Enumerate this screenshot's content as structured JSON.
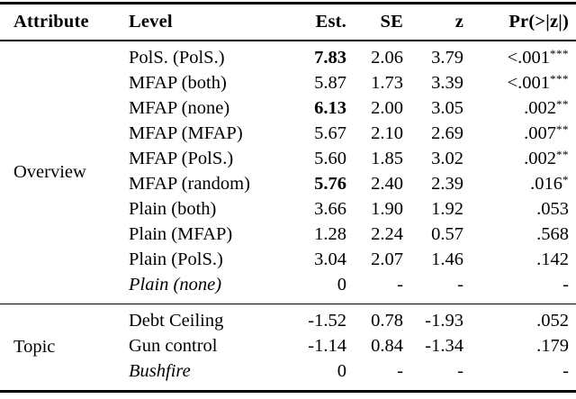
{
  "colors": {
    "text": "#000000",
    "background": "#ffffff",
    "rule": "#000000"
  },
  "table": {
    "columns": [
      "Attribute",
      "Level",
      "Est.",
      "SE",
      "z",
      "Pr(>|z|)"
    ],
    "groups": [
      {
        "attribute": "Overview",
        "rows": [
          {
            "level": "PolS. (PolS.)",
            "level_italic": false,
            "est": "7.83",
            "est_bold": true,
            "se": "2.06",
            "z": "3.79",
            "p": "<.001",
            "stars": "***"
          },
          {
            "level": "MFAP (both)",
            "level_italic": false,
            "est": "5.87",
            "est_bold": false,
            "se": "1.73",
            "z": "3.39",
            "p": "<.001",
            "stars": "***"
          },
          {
            "level": "MFAP (none)",
            "level_italic": false,
            "est": "6.13",
            "est_bold": true,
            "se": "2.00",
            "z": "3.05",
            "p": ".002",
            "stars": "**"
          },
          {
            "level": "MFAP (MFAP)",
            "level_italic": false,
            "est": "5.67",
            "est_bold": false,
            "se": "2.10",
            "z": "2.69",
            "p": ".007",
            "stars": "**"
          },
          {
            "level": "MFAP (PolS.)",
            "level_italic": false,
            "est": "5.60",
            "est_bold": false,
            "se": "1.85",
            "z": "3.02",
            "p": ".002",
            "stars": "**"
          },
          {
            "level": "MFAP (random)",
            "level_italic": false,
            "est": "5.76",
            "est_bold": true,
            "se": "2.40",
            "z": "2.39",
            "p": ".016",
            "stars": "*"
          },
          {
            "level": "Plain (both)",
            "level_italic": false,
            "est": "3.66",
            "est_bold": false,
            "se": "1.90",
            "z": "1.92",
            "p": ".053",
            "stars": ""
          },
          {
            "level": "Plain (MFAP)",
            "level_italic": false,
            "est": "1.28",
            "est_bold": false,
            "se": "2.24",
            "z": "0.57",
            "p": ".568",
            "stars": ""
          },
          {
            "level": "Plain (PolS.)",
            "level_italic": false,
            "est": "3.04",
            "est_bold": false,
            "se": "2.07",
            "z": "1.46",
            "p": ".142",
            "stars": ""
          },
          {
            "level": "Plain (none)",
            "level_italic": true,
            "est": "0",
            "est_bold": false,
            "se": "-",
            "z": "-",
            "p": "-",
            "stars": ""
          }
        ]
      },
      {
        "attribute": "Topic",
        "rows": [
          {
            "level": "Debt Ceiling",
            "level_italic": false,
            "est": "-1.52",
            "est_bold": false,
            "se": "0.78",
            "z": "-1.93",
            "p": ".052",
            "stars": ""
          },
          {
            "level": "Gun control",
            "level_italic": false,
            "est": "-1.14",
            "est_bold": false,
            "se": "0.84",
            "z": "-1.34",
            "p": ".179",
            "stars": ""
          },
          {
            "level": "Bushfire",
            "level_italic": true,
            "est": "0",
            "est_bold": false,
            "se": "-",
            "z": "-",
            "p": "-",
            "stars": ""
          }
        ]
      }
    ]
  },
  "chart_data": {
    "type": "table",
    "title": "",
    "columns": [
      "Attribute",
      "Level",
      "Est.",
      "SE",
      "z",
      "Pr(>|z|)"
    ],
    "rows": [
      [
        "Overview",
        "PolS. (PolS.)",
        "7.83",
        "2.06",
        "3.79",
        "<.001***"
      ],
      [
        "Overview",
        "MFAP (both)",
        "5.87",
        "1.73",
        "3.39",
        "<.001***"
      ],
      [
        "Overview",
        "MFAP (none)",
        "6.13",
        "2.00",
        "3.05",
        ".002**"
      ],
      [
        "Overview",
        "MFAP (MFAP)",
        "5.67",
        "2.10",
        "2.69",
        ".007**"
      ],
      [
        "Overview",
        "MFAP (PolS.)",
        "5.60",
        "1.85",
        "3.02",
        ".002**"
      ],
      [
        "Overview",
        "MFAP (random)",
        "5.76",
        "2.40",
        "2.39",
        ".016*"
      ],
      [
        "Overview",
        "Plain (both)",
        "3.66",
        "1.90",
        "1.92",
        ".053"
      ],
      [
        "Overview",
        "Plain (MFAP)",
        "1.28",
        "2.24",
        "0.57",
        ".568"
      ],
      [
        "Overview",
        "Plain (PolS.)",
        "3.04",
        "2.07",
        "1.46",
        ".142"
      ],
      [
        "Overview",
        "Plain (none)",
        "0",
        "-",
        "-",
        "-"
      ],
      [
        "Topic",
        "Debt Ceiling",
        "-1.52",
        "0.78",
        "-1.93",
        ".052"
      ],
      [
        "Topic",
        "Gun control",
        "-1.14",
        "0.84",
        "-1.34",
        ".179"
      ],
      [
        "Topic",
        "Bushfire",
        "0",
        "-",
        "-",
        "-"
      ]
    ]
  }
}
